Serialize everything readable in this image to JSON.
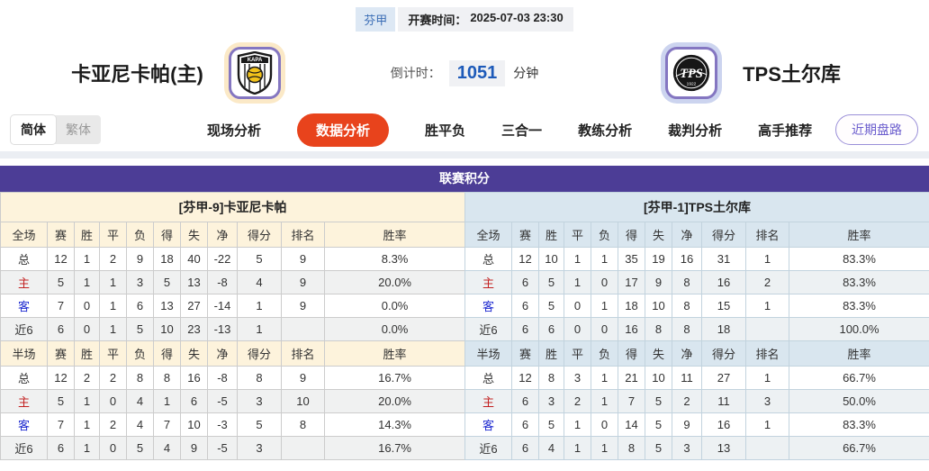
{
  "header": {
    "league": "芬甲",
    "kickoff_label": "开赛时间：",
    "kickoff_time": "2025-07-03 23:30",
    "home_team": "卡亚尼卡帕(主)",
    "away_team": "TPS土尔库",
    "home_logo": "kapa-shield-logo",
    "away_logo": "tps-circle-logo",
    "countdown_label": "倒计时：",
    "countdown_value": "1051",
    "countdown_unit": "分钟"
  },
  "nav": {
    "lang_simplified": "简体",
    "lang_traditional": "繁体",
    "tabs": [
      {
        "label": "现场分析",
        "active": false
      },
      {
        "label": "数据分析",
        "active": true
      },
      {
        "label": "胜平负",
        "active": false
      },
      {
        "label": "三合一",
        "active": false
      },
      {
        "label": "教练分析",
        "active": false
      },
      {
        "label": "裁判分析",
        "active": false
      },
      {
        "label": "高手推荐",
        "active": false
      }
    ],
    "recent_button": "近期盘路",
    "active_tab_color": "#e8431c",
    "recent_button_color": "#6a5ccd"
  },
  "section_title": "联赛积分",
  "section_title_bg": "#4c3d96",
  "tables": [
    {
      "title": "[芬甲-9]卡亚尼卡帕",
      "full": {
        "header": [
          "全场",
          "赛",
          "胜",
          "平",
          "负",
          "得",
          "失",
          "净",
          "得分",
          "排名",
          "胜率"
        ],
        "rows": [
          {
            "label": "总",
            "type": "total",
            "cells": [
              "12",
              "1",
              "2",
              "9",
              "18",
              "40",
              "-22",
              "5",
              "9",
              "8.3%"
            ]
          },
          {
            "label": "主",
            "type": "home",
            "cells": [
              "5",
              "1",
              "1",
              "3",
              "5",
              "13",
              "-8",
              "4",
              "9",
              "20.0%"
            ]
          },
          {
            "label": "客",
            "type": "away",
            "cells": [
              "7",
              "0",
              "1",
              "6",
              "13",
              "27",
              "-14",
              "1",
              "9",
              "0.0%"
            ]
          },
          {
            "label": "近6",
            "type": "recent",
            "cells": [
              "6",
              "0",
              "1",
              "5",
              "10",
              "23",
              "-13",
              "1",
              "",
              "0.0%"
            ]
          }
        ]
      },
      "half": {
        "header": [
          "半场",
          "赛",
          "胜",
          "平",
          "负",
          "得",
          "失",
          "净",
          "得分",
          "排名",
          "胜率"
        ],
        "rows": [
          {
            "label": "总",
            "type": "total",
            "cells": [
              "12",
              "2",
              "2",
              "8",
              "8",
              "16",
              "-8",
              "8",
              "9",
              "16.7%"
            ]
          },
          {
            "label": "主",
            "type": "home",
            "cells": [
              "5",
              "1",
              "0",
              "4",
              "1",
              "6",
              "-5",
              "3",
              "10",
              "20.0%"
            ]
          },
          {
            "label": "客",
            "type": "away",
            "cells": [
              "7",
              "1",
              "2",
              "4",
              "7",
              "10",
              "-3",
              "5",
              "8",
              "14.3%"
            ]
          },
          {
            "label": "近6",
            "type": "recent",
            "cells": [
              "6",
              "1",
              "0",
              "5",
              "4",
              "9",
              "-5",
              "3",
              "",
              "16.7%"
            ]
          }
        ]
      }
    },
    {
      "title": "[芬甲-1]TPS土尔库",
      "full": {
        "header": [
          "全场",
          "赛",
          "胜",
          "平",
          "负",
          "得",
          "失",
          "净",
          "得分",
          "排名",
          "胜率"
        ],
        "rows": [
          {
            "label": "总",
            "type": "total",
            "cells": [
              "12",
              "10",
              "1",
              "1",
              "35",
              "19",
              "16",
              "31",
              "1",
              "83.3%"
            ]
          },
          {
            "label": "主",
            "type": "home",
            "cells": [
              "6",
              "5",
              "1",
              "0",
              "17",
              "9",
              "8",
              "16",
              "2",
              "83.3%"
            ]
          },
          {
            "label": "客",
            "type": "away",
            "cells": [
              "6",
              "5",
              "0",
              "1",
              "18",
              "10",
              "8",
              "15",
              "1",
              "83.3%"
            ]
          },
          {
            "label": "近6",
            "type": "recent",
            "cells": [
              "6",
              "6",
              "0",
              "0",
              "16",
              "8",
              "8",
              "18",
              "",
              "100.0%"
            ]
          }
        ]
      },
      "half": {
        "header": [
          "半场",
          "赛",
          "胜",
          "平",
          "负",
          "得",
          "失",
          "净",
          "得分",
          "排名",
          "胜率"
        ],
        "rows": [
          {
            "label": "总",
            "type": "total",
            "cells": [
              "12",
              "8",
              "3",
              "1",
              "21",
              "10",
              "11",
              "27",
              "1",
              "66.7%"
            ]
          },
          {
            "label": "主",
            "type": "home",
            "cells": [
              "6",
              "3",
              "2",
              "1",
              "7",
              "5",
              "2",
              "11",
              "3",
              "50.0%"
            ]
          },
          {
            "label": "客",
            "type": "away",
            "cells": [
              "6",
              "5",
              "1",
              "0",
              "14",
              "5",
              "9",
              "16",
              "1",
              "83.3%"
            ]
          },
          {
            "label": "近6",
            "type": "recent",
            "cells": [
              "6",
              "4",
              "1",
              "1",
              "8",
              "5",
              "3",
              "13",
              "",
              "66.7%"
            ]
          }
        ]
      }
    }
  ]
}
